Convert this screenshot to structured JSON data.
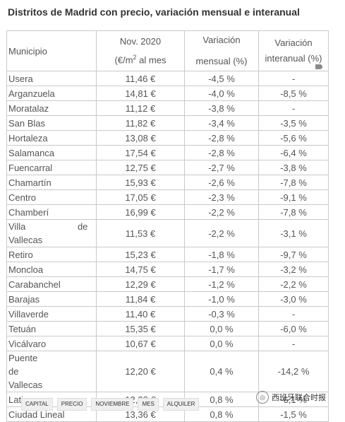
{
  "title": "Distritos de Madrid con precio, variación mensual e interanual",
  "table": {
    "headers": {
      "municipio": "Municipio",
      "price_line1": "Nov. 2020",
      "price_line2_pre": "(€/m",
      "price_sup": "2",
      "price_line2_post": " al mes",
      "mensual_line1": "Variación",
      "mensual_line2": "mensual (%)",
      "interanual_line1": "Variación",
      "interanual_line2": "interanual (%)"
    },
    "rows": [
      {
        "municipio": "Usera",
        "precio": "11,46 €",
        "mensual": "-4,5 %",
        "interanual": "-"
      },
      {
        "municipio": "Arganzuela",
        "precio": "14,81 €",
        "mensual": "-4,0 %",
        "interanual": "-8,5 %"
      },
      {
        "municipio": "Moratalaz",
        "precio": "11,12 €",
        "mensual": "-3,8 %",
        "interanual": "-"
      },
      {
        "municipio": "San Blas",
        "precio": "11,82 €",
        "mensual": "-3,4 %",
        "interanual": "-3,5 %"
      },
      {
        "municipio": "Hortaleza",
        "precio": "13,08 €",
        "mensual": "-2,8 %",
        "interanual": "-5,6 %"
      },
      {
        "municipio": "Salamanca",
        "precio": "17,54 €",
        "mensual": "-2,8 %",
        "interanual": "-6,4 %"
      },
      {
        "municipio": "Fuencarral",
        "precio": "12,75 €",
        "mensual": "-2,7 %",
        "interanual": "-3,8 %"
      },
      {
        "municipio": "Chamartín",
        "precio": "15,93 €",
        "mensual": "-2,6 %",
        "interanual": "-7,8 %"
      },
      {
        "municipio": "Centro",
        "precio": "17,05 €",
        "mensual": "-2,3 %",
        "interanual": "-9,1 %"
      },
      {
        "municipio": "Chamberí",
        "precio": "16,99 €",
        "mensual": "-2,2 %",
        "interanual": "-7,8 %"
      },
      {
        "municipio": "Villa de Vallecas",
        "precio": "11,53 €",
        "mensual": "-2,2 %",
        "interanual": "-3,1 %"
      },
      {
        "municipio": "Retiro",
        "precio": "15,23 €",
        "mensual": "-1,8 %",
        "interanual": "-9,7 %"
      },
      {
        "municipio": "Moncloa",
        "precio": "14,75 €",
        "mensual": "-1,7 %",
        "interanual": "-3,2 %"
      },
      {
        "municipio": "Carabanchel",
        "precio": "12,29 €",
        "mensual": "-1,2 %",
        "interanual": "-2,2 %"
      },
      {
        "municipio": "Barajas",
        "precio": "11,84 €",
        "mensual": "-1,0 %",
        "interanual": "-3,0 %"
      },
      {
        "municipio": "Villaverde",
        "precio": "11,40 €",
        "mensual": "-0,3 %",
        "interanual": "-"
      },
      {
        "municipio": "Tetuán",
        "precio": "15,35 €",
        "mensual": "0,0 %",
        "interanual": "-6,0 %"
      },
      {
        "municipio": "Vicálvaro",
        "precio": "10,67 €",
        "mensual": "0,0 %",
        "interanual": "-"
      },
      {
        "municipio": "Puente de Vallecas",
        "precio": "12,20 €",
        "mensual": "0,4 %",
        "interanual": "-14,2 %"
      },
      {
        "municipio": "Latina",
        "precio": "12,38 €",
        "mensual": "0,8 %",
        "interanual": "-6,1 %"
      },
      {
        "municipio": "Ciudad Lineal",
        "precio": "13,36 €",
        "mensual": "0,8 %",
        "interanual": "-1,5 %"
      }
    ]
  },
  "tags": [
    "Capital",
    "Precio",
    "Noviembre",
    "Mes",
    "Alquiler"
  ],
  "watermark": "西班牙联合时报",
  "watermark_icon": "wechat-icon"
}
